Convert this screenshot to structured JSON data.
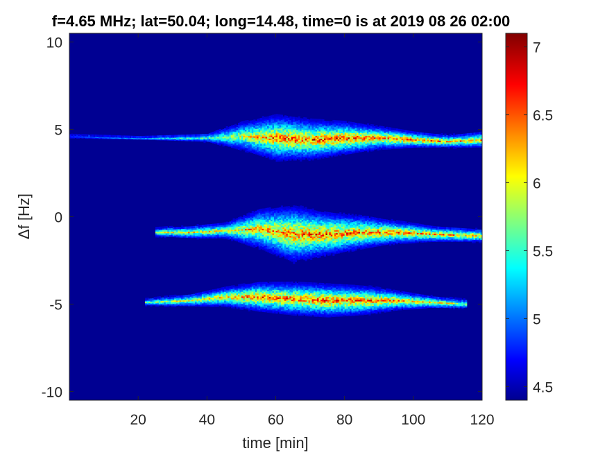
{
  "chart_data": {
    "type": "heatmap",
    "title": "f=4.65 MHz;  lat=50.04; long=14.48, time=0 is at 2019 08 26 02:00",
    "xlabel": "time [min]",
    "ylabel": "Δf [Hz]",
    "xlim": [
      0,
      120
    ],
    "ylim": [
      -10.5,
      10.5
    ],
    "x_ticks": [
      20,
      40,
      60,
      80,
      100,
      120
    ],
    "y_ticks": [
      -10,
      -5,
      0,
      5,
      10
    ],
    "colorbar": {
      "colormap": "jet",
      "clim": [
        4.4,
        7.1
      ],
      "ticks": [
        4.5,
        5,
        5.5,
        6,
        6.5,
        7
      ]
    },
    "background_value": 4.45,
    "traces": [
      {
        "label": "upper trace",
        "points": [
          {
            "time": 0,
            "df": 4.6,
            "intensity": 5.0,
            "spread": 0.1
          },
          {
            "time": 20,
            "df": 4.5,
            "intensity": 5.6,
            "spread": 0.05
          },
          {
            "time": 40,
            "df": 4.5,
            "intensity": 5.9,
            "spread": 0.2
          },
          {
            "time": 50,
            "df": 4.6,
            "intensity": 6.4,
            "spread": 0.8
          },
          {
            "time": 60,
            "df": 4.5,
            "intensity": 7.0,
            "spread": 1.3
          },
          {
            "time": 70,
            "df": 4.4,
            "intensity": 7.1,
            "spread": 1.1
          },
          {
            "time": 80,
            "df": 4.5,
            "intensity": 7.1,
            "spread": 0.9
          },
          {
            "time": 90,
            "df": 4.5,
            "intensity": 7.0,
            "spread": 0.6
          },
          {
            "time": 100,
            "df": 4.4,
            "intensity": 6.9,
            "spread": 0.4
          },
          {
            "time": 110,
            "df": 4.3,
            "intensity": 6.8,
            "spread": 0.3
          },
          {
            "time": 120,
            "df": 4.4,
            "intensity": 6.7,
            "spread": 0.4
          }
        ]
      },
      {
        "label": "middle trace",
        "points": [
          {
            "time": 25,
            "df": -0.9,
            "intensity": 6.3,
            "spread": 0.2
          },
          {
            "time": 35,
            "df": -0.9,
            "intensity": 6.6,
            "spread": 0.3
          },
          {
            "time": 45,
            "df": -0.8,
            "intensity": 6.4,
            "spread": 0.4
          },
          {
            "time": 55,
            "df": -0.7,
            "intensity": 6.8,
            "spread": 1.1
          },
          {
            "time": 65,
            "df": -1.0,
            "intensity": 7.0,
            "spread": 1.6
          },
          {
            "time": 75,
            "df": -1.0,
            "intensity": 7.1,
            "spread": 1.2
          },
          {
            "time": 85,
            "df": -0.9,
            "intensity": 7.0,
            "spread": 0.9
          },
          {
            "time": 95,
            "df": -0.9,
            "intensity": 6.9,
            "spread": 0.6
          },
          {
            "time": 105,
            "df": -1.0,
            "intensity": 6.8,
            "spread": 0.4
          },
          {
            "time": 120,
            "df": -1.1,
            "intensity": 6.7,
            "spread": 0.3
          }
        ]
      },
      {
        "label": "lower trace",
        "points": [
          {
            "time": 22,
            "df": -4.9,
            "intensity": 6.2,
            "spread": 0.15
          },
          {
            "time": 35,
            "df": -4.8,
            "intensity": 6.4,
            "spread": 0.3
          },
          {
            "time": 45,
            "df": -4.6,
            "intensity": 6.7,
            "spread": 0.5
          },
          {
            "time": 55,
            "df": -4.6,
            "intensity": 7.0,
            "spread": 0.8
          },
          {
            "time": 65,
            "df": -4.7,
            "intensity": 7.0,
            "spread": 0.9
          },
          {
            "time": 75,
            "df": -4.8,
            "intensity": 7.1,
            "spread": 0.9
          },
          {
            "time": 85,
            "df": -4.8,
            "intensity": 7.0,
            "spread": 0.8
          },
          {
            "time": 95,
            "df": -4.8,
            "intensity": 6.9,
            "spread": 0.5
          },
          {
            "time": 105,
            "df": -4.9,
            "intensity": 6.6,
            "spread": 0.3
          },
          {
            "time": 115,
            "df": -5.0,
            "intensity": 6.2,
            "spread": 0.2
          }
        ]
      }
    ]
  }
}
